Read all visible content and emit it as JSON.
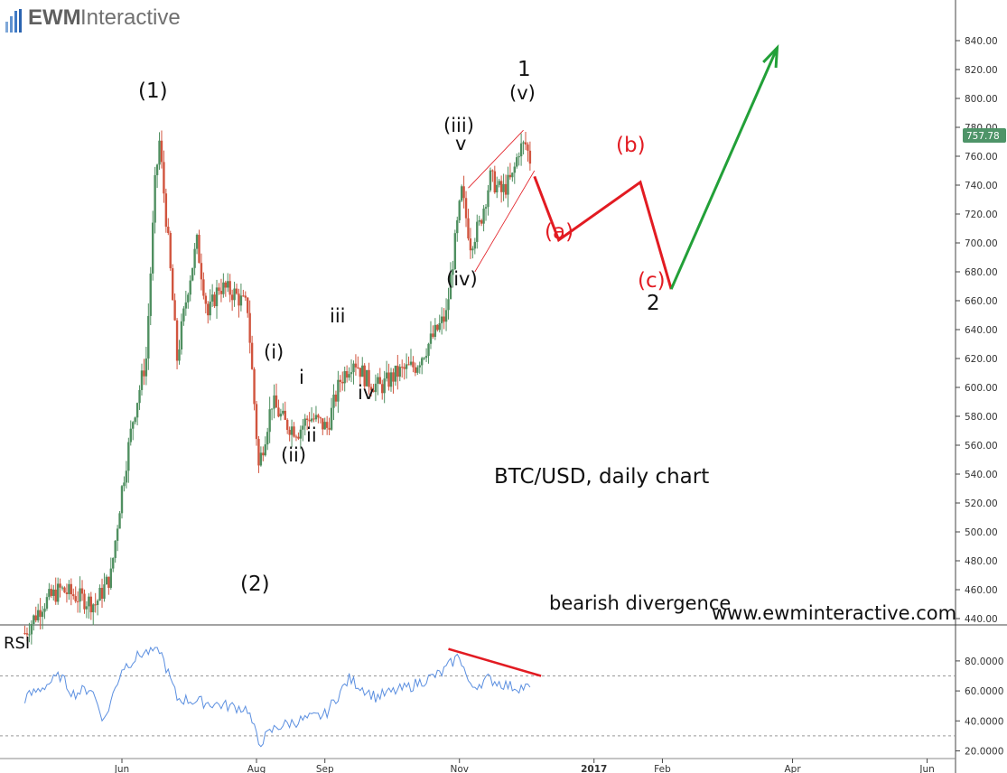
{
  "brand": {
    "name": "EWM",
    "suffix": "Interactive"
  },
  "title": "BTC/USD, daily chart",
  "website": "www.ewminteractive.com",
  "current_price_label": "757.78",
  "rsi_label": "RSI",
  "divergence_label": "bearish divergence",
  "colors": {
    "up_candle": "#4f8f60",
    "down_candle": "#d1543e",
    "projection_red": "#e21b22",
    "projection_green": "#22a038",
    "rsi_line": "#5b8fe0",
    "price_badge": "#4e9468"
  },
  "wave_labels": {
    "w1": "(1)",
    "w2": "(2)",
    "si": "(i)",
    "sii": "(ii)",
    "siii": "(iii)",
    "siv": "(iv)",
    "sv": "(v)",
    "mi": "i",
    "mii": "ii",
    "miii": "iii",
    "miv": "iv",
    "mv": "v",
    "one": "1",
    "two": "2",
    "a": "(a)",
    "b": "(b)",
    "c": "(c)"
  },
  "chart_data": [
    {
      "type": "candlestick",
      "title": "BTC/USD, daily chart",
      "ylim": [
        422,
        850
      ],
      "yticks": [
        "440.00",
        "460.00",
        "480.00",
        "500.00",
        "520.00",
        "540.00",
        "560.00",
        "580.00",
        "600.00",
        "620.00",
        "640.00",
        "660.00",
        "680.00",
        "700.00",
        "720.00",
        "740.00",
        "760.00",
        "780.00",
        "800.00",
        "820.00",
        "840.00"
      ],
      "xticks": [
        "Jun",
        "Aug",
        "Sep",
        "Nov",
        "2017",
        "Feb",
        "Apr",
        "Jun"
      ],
      "price_path": [
        [
          "2016-04-18",
          430
        ],
        [
          "2016-04-26",
          450
        ],
        [
          "2016-05-04",
          460
        ],
        [
          "2016-05-12",
          455
        ],
        [
          "2016-05-20",
          450
        ],
        [
          "2016-05-27",
          470
        ],
        [
          "2016-06-01",
          530
        ],
        [
          "2016-06-06",
          578
        ],
        [
          "2016-06-12",
          620
        ],
        [
          "2016-06-16",
          740
        ],
        [
          "2016-06-18",
          770
        ],
        [
          "2016-06-22",
          700
        ],
        [
          "2016-06-26",
          620
        ],
        [
          "2016-07-01",
          670
        ],
        [
          "2016-07-05",
          700
        ],
        [
          "2016-07-10",
          650
        ],
        [
          "2016-07-15",
          670
        ],
        [
          "2016-07-22",
          665
        ],
        [
          "2016-07-28",
          655
        ],
        [
          "2016-08-02",
          545
        ],
        [
          "2016-08-08",
          590
        ],
        [
          "2016-08-14",
          575
        ],
        [
          "2016-08-20",
          570
        ],
        [
          "2016-08-25",
          580
        ],
        [
          "2016-09-02",
          572
        ],
        [
          "2016-09-08",
          605
        ],
        [
          "2016-09-14",
          620
        ],
        [
          "2016-09-20",
          605
        ],
        [
          "2016-09-26",
          600
        ],
        [
          "2016-10-04",
          610
        ],
        [
          "2016-10-12",
          615
        ],
        [
          "2016-10-20",
          635
        ],
        [
          "2016-10-26",
          650
        ],
        [
          "2016-10-30",
          700
        ],
        [
          "2016-11-02",
          735
        ],
        [
          "2016-11-06",
          700
        ],
        [
          "2016-11-10",
          712
        ],
        [
          "2016-11-15",
          745
        ],
        [
          "2016-11-20",
          735
        ],
        [
          "2016-11-25",
          745
        ],
        [
          "2016-11-28",
          765
        ],
        [
          "2016-12-01",
          768
        ],
        [
          "2016-12-03",
          757.78
        ]
      ],
      "rsi": {
        "ylim": [
          20,
          90
        ],
        "yticks": [
          "20.0000",
          "40.0000",
          "60.0000",
          "80.0000"
        ],
        "levels": [
          30,
          70
        ],
        "path": [
          [
            "2016-04-18",
            55
          ],
          [
            "2016-05-04",
            70
          ],
          [
            "2016-05-10",
            58
          ],
          [
            "2016-05-18",
            62
          ],
          [
            "2016-05-24",
            40
          ],
          [
            "2016-06-01",
            75
          ],
          [
            "2016-06-10",
            85
          ],
          [
            "2016-06-18",
            88
          ],
          [
            "2016-06-26",
            55
          ],
          [
            "2016-07-10",
            52
          ],
          [
            "2016-07-28",
            48
          ],
          [
            "2016-08-02",
            25
          ],
          [
            "2016-08-10",
            36
          ],
          [
            "2016-08-20",
            40
          ],
          [
            "2016-09-01",
            44
          ],
          [
            "2016-09-12",
            68
          ],
          [
            "2016-09-24",
            56
          ],
          [
            "2016-10-08",
            62
          ],
          [
            "2016-10-24",
            72
          ],
          [
            "2016-11-01",
            84
          ],
          [
            "2016-11-06",
            62
          ],
          [
            "2016-11-14",
            68
          ],
          [
            "2016-11-24",
            63
          ],
          [
            "2016-12-03",
            62
          ]
        ]
      },
      "divergence_line": [
        [
          "2016-10-27",
          88
        ],
        [
          "2016-12-08",
          70
        ]
      ],
      "wedge_lines": [
        [
          [
            "2016-11-05",
            738
          ],
          [
            "2016-11-30",
            778
          ]
        ],
        [
          [
            "2016-11-08",
            680
          ],
          [
            "2016-12-05",
            750
          ]
        ]
      ],
      "projection_red": [
        [
          "2016-12-05",
          746
        ],
        [
          "2016-12-16",
          702
        ],
        [
          "2017-01-22",
          742
        ],
        [
          "2017-02-05",
          668
        ]
      ],
      "projection_green": [
        [
          "2017-02-05",
          668
        ],
        [
          "2017-03-25",
          835
        ]
      ]
    }
  ]
}
